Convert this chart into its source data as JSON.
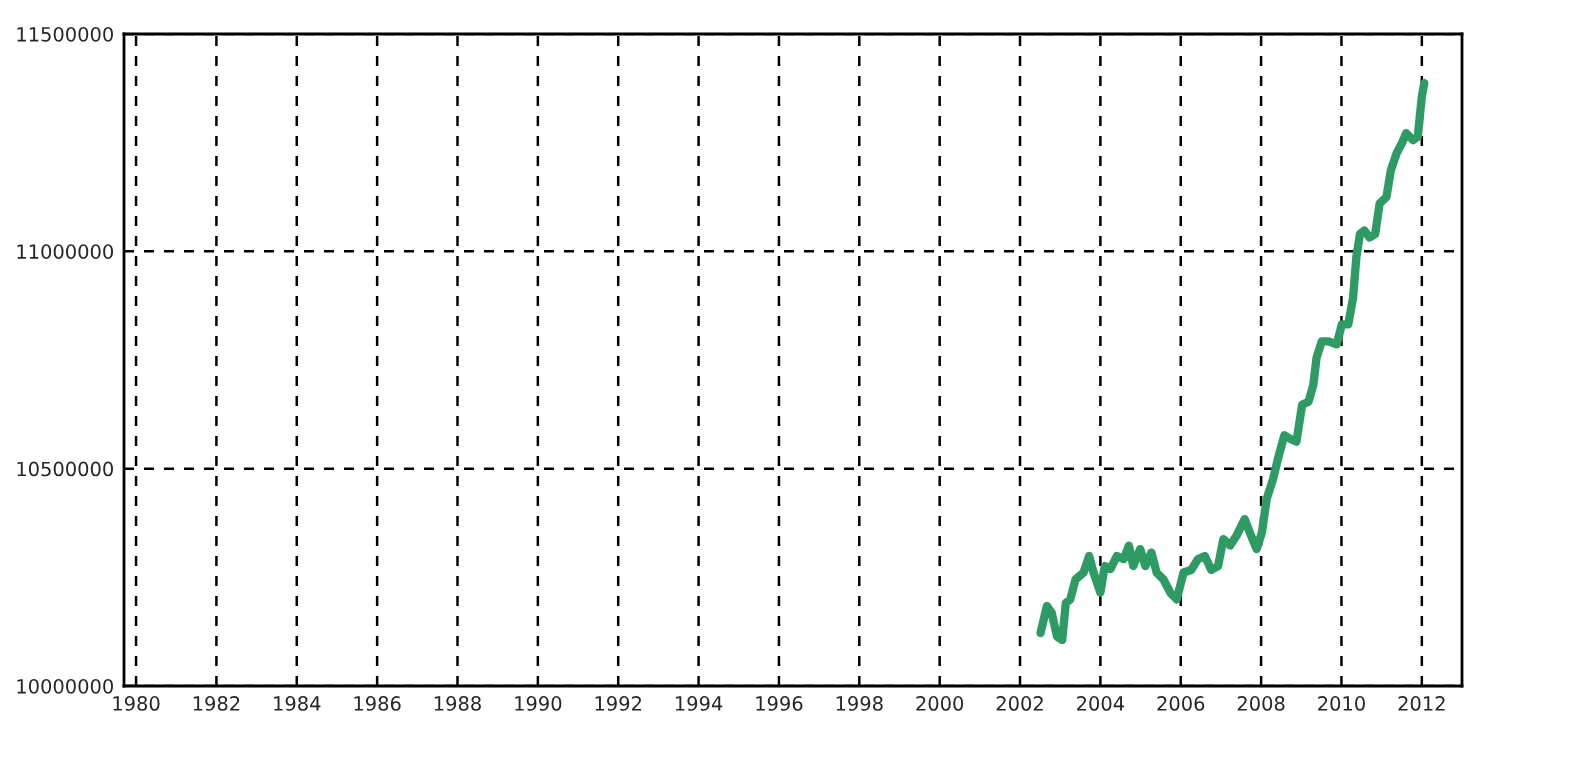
{
  "chart_data": {
    "type": "line",
    "xlim": [
      1979.7,
      2013.0
    ],
    "ylim": [
      10000000,
      11500000
    ],
    "xticks": [
      1980,
      1982,
      1984,
      1986,
      1988,
      1990,
      1992,
      1994,
      1996,
      1998,
      2000,
      2002,
      2004,
      2006,
      2008,
      2010,
      2012
    ],
    "yticks": [
      10000000,
      10500000,
      11000000,
      11500000
    ],
    "grid": true,
    "line_style": "solid",
    "marker": "none",
    "series": [
      {
        "color": "#2e9b64",
        "x": [
          2002.51,
          2002.67,
          2002.79,
          2002.92,
          2003.05,
          2003.14,
          2003.25,
          2003.38,
          2003.58,
          2003.72,
          2003.83,
          2004.0,
          2004.11,
          2004.25,
          2004.41,
          2004.58,
          2004.71,
          2004.82,
          2004.99,
          2005.12,
          2005.27,
          2005.4,
          2005.57,
          2005.74,
          2005.9,
          2006.07,
          2006.26,
          2006.43,
          2006.6,
          2006.76,
          2006.93,
          2007.06,
          2007.23,
          2007.39,
          2007.59,
          2007.72,
          2007.89,
          2008.02,
          2008.14,
          2008.3,
          2008.42,
          2008.58,
          2008.72,
          2008.88,
          2009.02,
          2009.18,
          2009.3,
          2009.38,
          2009.51,
          2009.68,
          2009.88,
          2010.01,
          2010.17,
          2010.29,
          2010.37,
          2010.46,
          2010.57,
          2010.7,
          2010.84,
          2010.95,
          2011.12,
          2011.23,
          2011.37,
          2011.5,
          2011.61,
          2011.78,
          2011.9,
          2012.0,
          2012.06
        ],
        "values": [
          10122000,
          10184000,
          10168000,
          10114000,
          10106000,
          10191000,
          10199000,
          10245000,
          10261000,
          10299000,
          10261000,
          10215000,
          10276000,
          10269000,
          10299000,
          10292000,
          10323000,
          10276000,
          10315000,
          10276000,
          10307000,
          10261000,
          10245000,
          10215000,
          10199000,
          10261000,
          10267000,
          10292000,
          10299000,
          10267000,
          10276000,
          10338000,
          10323000,
          10346000,
          10384000,
          10353000,
          10315000,
          10353000,
          10431000,
          10477000,
          10523000,
          10577000,
          10569000,
          10562000,
          10647000,
          10654000,
          10693000,
          10755000,
          10793000,
          10793000,
          10786000,
          10832000,
          10832000,
          10894000,
          10986000,
          11040000,
          11048000,
          11032000,
          11040000,
          11110000,
          11125000,
          11187000,
          11225000,
          11248000,
          11272000,
          11256000,
          11264000,
          11356000,
          11387000
        ]
      }
    ]
  }
}
